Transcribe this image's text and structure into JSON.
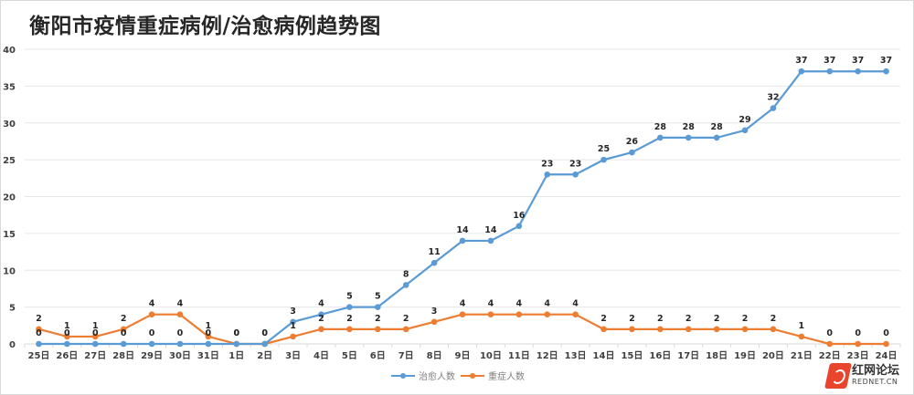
{
  "chart_data": {
    "type": "line",
    "title": "衡阳市疫情重症病例/治愈病例趋势图",
    "xlabel": "",
    "ylabel": "",
    "ylim": [
      0,
      40
    ],
    "yticks": [
      0,
      5,
      10,
      15,
      20,
      25,
      30,
      35,
      40
    ],
    "grid": true,
    "legend_position": "bottom-center",
    "categories": [
      "25日",
      "26日",
      "27日",
      "28日",
      "29日",
      "30日",
      "31日",
      "1日",
      "2日",
      "3日",
      "4日",
      "5日",
      "6日",
      "7日",
      "8日",
      "9日",
      "10日",
      "11日",
      "12日",
      "13日",
      "14日",
      "15日",
      "16日",
      "17日",
      "18日",
      "19日",
      "20日",
      "21日",
      "22日",
      "23日",
      "24日"
    ],
    "series": [
      {
        "name": "治愈人数",
        "color": "#5b9bd5",
        "values": [
          0,
          0,
          0,
          0,
          0,
          0,
          0,
          0,
          0,
          3,
          4,
          5,
          5,
          8,
          11,
          14,
          14,
          16,
          23,
          23,
          25,
          26,
          28,
          28,
          28,
          29,
          32,
          37,
          37,
          37,
          37
        ]
      },
      {
        "name": "重症人数",
        "color": "#ed7d31",
        "values": [
          2,
          1,
          1,
          2,
          4,
          4,
          1,
          0,
          0,
          1,
          2,
          2,
          2,
          2,
          3,
          4,
          4,
          4,
          4,
          4,
          2,
          2,
          2,
          2,
          2,
          2,
          2,
          1,
          0,
          0,
          0
        ]
      }
    ]
  },
  "watermark": {
    "cn": "红网论坛",
    "en": "REDNET.CN"
  }
}
